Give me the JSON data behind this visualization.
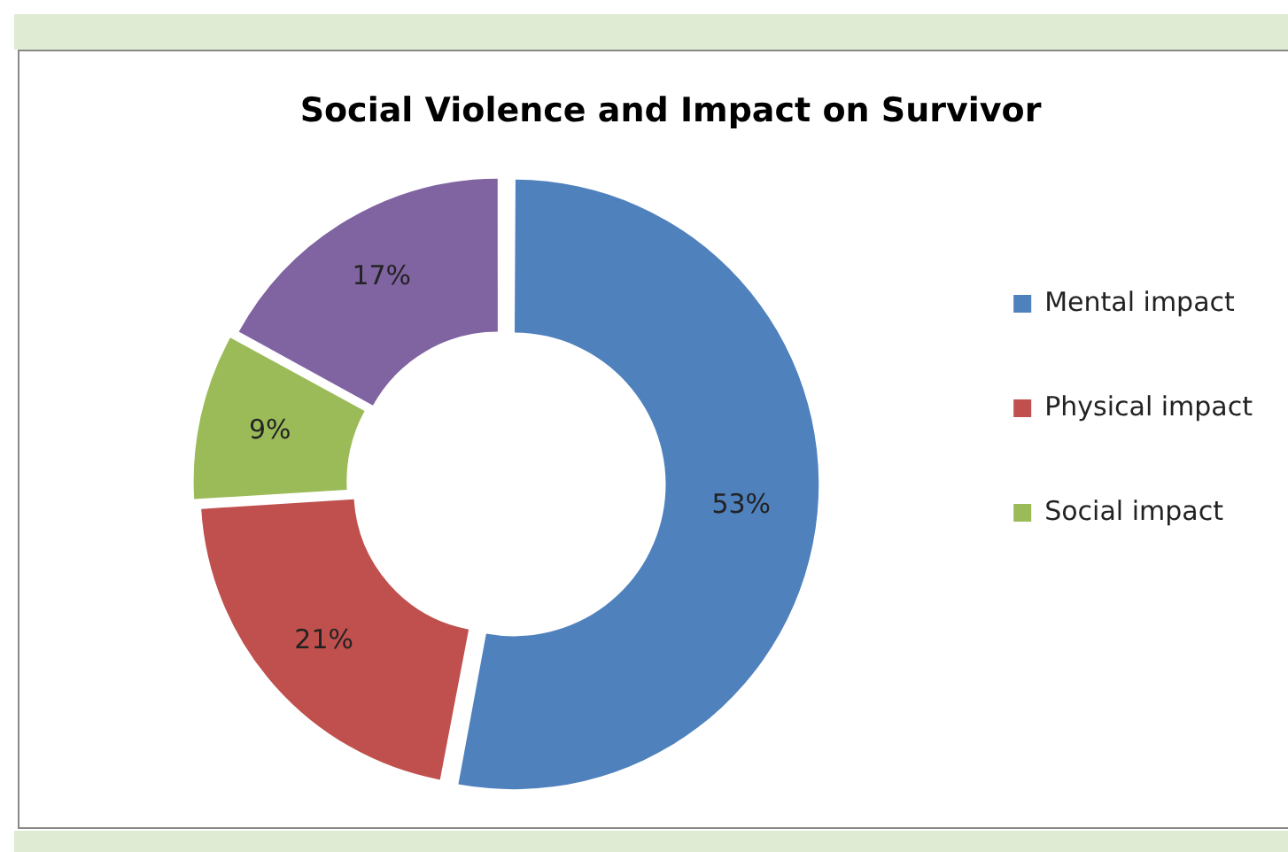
{
  "chart_data": {
    "type": "donut",
    "title": "Social Violence and Impact on Survivor",
    "categories": [
      "Mental impact",
      "Physical impact",
      "Social impact",
      null
    ],
    "values": [
      53,
      21,
      9,
      17
    ],
    "colors": [
      "#4f81bd",
      "#c0504d",
      "#9bbb59",
      "#8064a2"
    ],
    "value_labels": [
      "53%",
      "21%",
      "9%",
      "17%"
    ],
    "legend": "right"
  }
}
